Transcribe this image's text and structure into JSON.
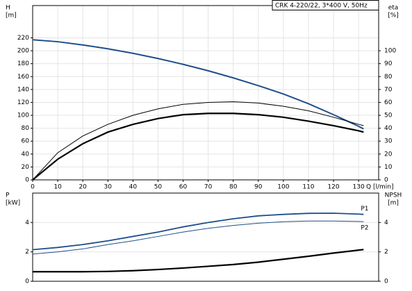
{
  "chart_data": [
    {
      "type": "line",
      "title": "CRK 4-220/22, 3*400 V, 50Hz",
      "ylabel": [
        "H",
        "[m]"
      ],
      "y2label": [
        "eta",
        "[%]"
      ],
      "xlabel": "Q [l/min]",
      "x": [
        0,
        10,
        20,
        30,
        40,
        50,
        60,
        70,
        80,
        90,
        100,
        110,
        120,
        130,
        132
      ],
      "xlim": [
        0,
        138
      ],
      "xticks": [
        0,
        10,
        20,
        30,
        40,
        50,
        60,
        70,
        80,
        90,
        100,
        110,
        120,
        130
      ],
      "ylim": [
        0,
        270
      ],
      "yticks": [
        0,
        20,
        40,
        60,
        80,
        100,
        120,
        140,
        160,
        180,
        200,
        220
      ],
      "y2lim": [
        0,
        135
      ],
      "y2ticks": [
        0,
        10,
        20,
        30,
        40,
        50,
        60,
        70,
        80,
        90,
        100
      ],
      "grid": true,
      "series": [
        {
          "color": "#1f4e8c",
          "width": 2,
          "values": [
            217,
            214,
            209,
            203,
            196,
            188,
            179,
            169,
            158,
            146,
            133,
            118,
            101,
            83,
            79
          ]
        },
        {
          "color": "#000000",
          "width": 1,
          "axis": "y2",
          "values": [
            0,
            21,
            34,
            43,
            50,
            55,
            58.5,
            60,
            60.5,
            59.5,
            57,
            53.5,
            48.5,
            43,
            42
          ]
        },
        {
          "color": "#000000",
          "width": 2.2,
          "axis": "y2",
          "values": [
            0,
            16,
            28,
            37,
            43,
            47.5,
            50.5,
            51.5,
            51.5,
            50.5,
            48.5,
            45.5,
            42,
            38,
            37
          ]
        }
      ]
    },
    {
      "type": "line",
      "ylabel": [
        "P",
        "[kW]"
      ],
      "y2label": [
        "NPSH",
        "[m]"
      ],
      "x": [
        0,
        10,
        20,
        30,
        40,
        50,
        60,
        70,
        80,
        90,
        100,
        110,
        120,
        130,
        132
      ],
      "xlim": [
        0,
        138
      ],
      "ylim": [
        0,
        6
      ],
      "yticks": [
        0,
        2,
        4
      ],
      "y2lim": [
        0,
        6
      ],
      "y2ticks": [
        0,
        2,
        4
      ],
      "grid": true,
      "series": [
        {
          "name": "P1",
          "color": "#1f4e8c",
          "width": 1.8,
          "values": [
            2.15,
            2.3,
            2.5,
            2.75,
            3.05,
            3.35,
            3.7,
            4.0,
            4.25,
            4.45,
            4.55,
            4.62,
            4.63,
            4.57,
            4.55
          ]
        },
        {
          "name": "P2",
          "color": "#1f4e8c",
          "width": 1,
          "values": [
            1.85,
            2.0,
            2.2,
            2.5,
            2.75,
            3.05,
            3.35,
            3.6,
            3.8,
            3.95,
            4.05,
            4.1,
            4.1,
            4.07,
            4.06
          ]
        },
        {
          "color": "#000000",
          "width": 2.2,
          "axis": "y2",
          "values": [
            0.65,
            0.65,
            0.65,
            0.67,
            0.72,
            0.8,
            0.9,
            1.02,
            1.14,
            1.3,
            1.5,
            1.7,
            1.92,
            2.12,
            2.16
          ]
        }
      ]
    }
  ]
}
